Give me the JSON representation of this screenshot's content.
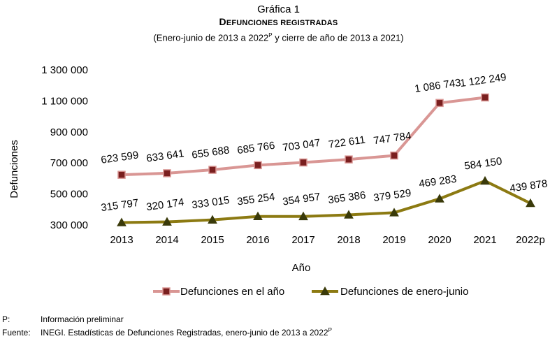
{
  "header": {
    "figure_label": "Gráfica 1",
    "title_first": "D",
    "title_rest": "EFUNCIONES REGISTRADAS",
    "subtitle_pre": "(Enero-junio de 2013 a 2022",
    "subtitle_sup": "P",
    "subtitle_post": " y cierre de año de 2013 a 2021)"
  },
  "chart_data": {
    "type": "line",
    "title": "DEFUNCIONES REGISTRADAS",
    "xlabel": "Año",
    "ylabel": "Defunciones",
    "ylim": [
      300000,
      1300000
    ],
    "yticks": [
      300000,
      500000,
      700000,
      900000,
      1100000,
      1300000
    ],
    "ytick_labels": [
      "300 000",
      "500 000",
      "700 000",
      "900 000",
      "1 100 000",
      "1 300 000"
    ],
    "categories": [
      "2013",
      "2014",
      "2015",
      "2016",
      "2017",
      "2018",
      "2019",
      "2020",
      "2021",
      "2022p"
    ],
    "series": [
      {
        "name": "Defunciones en el año",
        "marker": "square",
        "color": "#d99694",
        "marker_fill": "#7a1f1f",
        "values": [
          623599,
          633641,
          655688,
          685766,
          703047,
          722611,
          747784,
          1086743,
          1122249,
          null
        ],
        "labels": [
          "623 599",
          "633 641",
          "655 688",
          "685 766",
          "703 047",
          "722 611",
          "747 784",
          "1 086 743",
          "1 122 249",
          null
        ]
      },
      {
        "name": "Defunciones de enero-junio",
        "marker": "triangle",
        "color": "#8c7a12",
        "marker_fill": "#3a3a0a",
        "values": [
          315797,
          320174,
          333015,
          355254,
          354957,
          365386,
          379529,
          469283,
          584150,
          439878
        ],
        "labels": [
          "315 797",
          "320 174",
          "333 015",
          "355 254",
          "354 957",
          "365 386",
          "379 529",
          "469 283",
          "584 150",
          "439 878"
        ]
      }
    ],
    "grid": false,
    "legend_position": "bottom"
  },
  "notes": {
    "p_key": "P:",
    "p_text": "Información preliminar",
    "source_key": "Fuente:",
    "source_text": "INEGI. Estadísticas de Defunciones Registradas, enero-junio de 2013 a 2022",
    "source_sup": "P"
  }
}
